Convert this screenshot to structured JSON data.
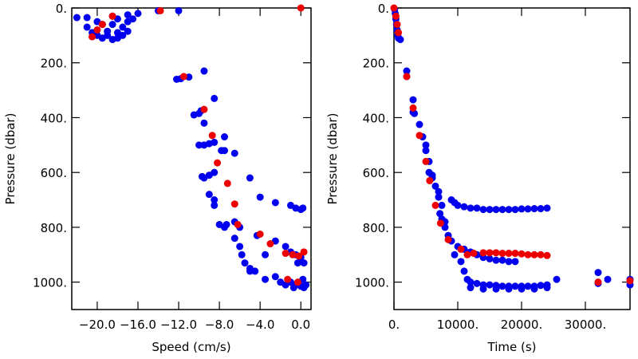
{
  "chart_data": [
    {
      "type": "scatter",
      "xlabel": "Speed (cm/s)",
      "ylabel": "Pressure (dbar)",
      "xlim": [
        -22.5,
        1.0
      ],
      "ylim": [
        0,
        1100
      ],
      "y_inverted": true,
      "xticks": [
        {
          "value": -20,
          "label": "−20.0"
        },
        {
          "value": -16,
          "label": "−16.0"
        },
        {
          "value": -12,
          "label": "−12.0"
        },
        {
          "value": -8,
          "label": "−8.0"
        },
        {
          "value": -4,
          "label": "−4.0"
        },
        {
          "value": 0,
          "label": "0.0"
        }
      ],
      "yticks": [
        {
          "value": 0,
          "label": "0."
        },
        {
          "value": 200,
          "label": "200."
        },
        {
          "value": 400,
          "label": "400."
        },
        {
          "value": 600,
          "label": "600."
        },
        {
          "value": 800,
          "label": "800."
        },
        {
          "value": 1000,
          "label": "1000."
        }
      ],
      "series": [
        {
          "color": "#0000ee",
          "x": [
            -22,
            -21,
            -20,
            -19.5,
            -21,
            -20.5,
            -20,
            -19.5,
            -19,
            -18.5,
            -18,
            -19,
            -18,
            -18.5,
            -17.5,
            -17,
            -17.5,
            -17,
            -16,
            -16.5,
            -17,
            -18,
            -14,
            -12,
            -18.5,
            -12.2,
            -11.8,
            -11,
            -9.5,
            -8.5,
            -10.5,
            -10,
            -9.8,
            -9.5,
            -10,
            -9.5,
            -9,
            -8.5,
            -7.5,
            -9.7,
            -9.5,
            -9,
            -8.5,
            -7.8,
            -7.5,
            -6.5,
            -5,
            -4,
            -2.5,
            -1,
            -0.5,
            0,
            0.2,
            -9,
            -8.5,
            -8.5,
            -8,
            -7.5,
            -7.3,
            -6.5,
            -6,
            -6.5,
            -6,
            -5.8,
            -5.5,
            -5,
            -4.5,
            -3.5,
            -3.5,
            -2.5,
            -2,
            -1.5,
            -1,
            -0.5,
            0,
            0.3,
            0.5,
            -1,
            -0.5,
            0,
            -0.3,
            0.3,
            -2.5,
            -1.5,
            -0.7,
            0.2,
            -4.3,
            -5
          ],
          "values": [
            35,
            35,
            50,
            60,
            70,
            90,
            100,
            110,
            100,
            115,
            110,
            85,
            90,
            60,
            70,
            50,
            100,
            25,
            20,
            40,
            85,
            40,
            10,
            10,
            30,
            260,
            258,
            252,
            230,
            330,
            390,
            385,
            375,
            420,
            500,
            500,
            495,
            490,
            520,
            615,
            620,
            610,
            600,
            520,
            470,
            530,
            620,
            690,
            710,
            720,
            730,
            735,
            730,
            680,
            700,
            720,
            790,
            800,
            790,
            780,
            800,
            840,
            870,
            900,
            930,
            950,
            960,
            900,
            990,
            980,
            1000,
            1010,
            1000,
            1010,
            1015,
            1020,
            1010,
            890,
            900,
            910,
            930,
            930,
            850,
            870,
            1020,
            990,
            830,
            960
          ]
        },
        {
          "color": "#ee0000",
          "x": [
            -20.5,
            -20,
            -19.5,
            -18.5,
            -13.8,
            -11.5,
            -9.5,
            -8.7,
            -8.2,
            -7.2,
            -6.5,
            -6.2,
            -4,
            -3,
            -1.5,
            -0.8,
            -0.2,
            0.3,
            -1.3,
            -0.3,
            0
          ],
          "values": [
            105,
            80,
            60,
            30,
            10,
            250,
            370,
            465,
            565,
            640,
            715,
            790,
            825,
            860,
            895,
            900,
            905,
            890,
            990,
            1000,
            0
          ]
        }
      ]
    },
    {
      "type": "scatter",
      "xlabel": "Time (s)",
      "ylabel": "Pressure (dbar)",
      "xlim": [
        0,
        37000
      ],
      "ylim": [
        0,
        1100
      ],
      "y_inverted": true,
      "xticks": [
        {
          "value": 0,
          "label": "0."
        },
        {
          "value": 10000,
          "label": "10000."
        },
        {
          "value": 20000,
          "label": "20000."
        },
        {
          "value": 30000,
          "label": "30000."
        }
      ],
      "yticks": [
        {
          "value": 0,
          "label": "0."
        },
        {
          "value": 200,
          "label": "200."
        },
        {
          "value": 400,
          "label": "400."
        },
        {
          "value": 600,
          "label": "600."
        },
        {
          "value": 800,
          "label": "800."
        },
        {
          "value": 1000,
          "label": "1000."
        }
      ],
      "series": [
        {
          "color": "#0000ee",
          "x": [
            100,
            200,
            300,
            400,
            500,
            600,
            700,
            1000,
            2000,
            2000,
            3000,
            3000,
            3200,
            4000,
            4500,
            5000,
            5000,
            5500,
            5500,
            6000,
            6000,
            6500,
            7000,
            7000,
            7500,
            7200,
            7500,
            8000,
            8000,
            8500,
            9000,
            9500,
            10000,
            11000,
            12000,
            13000,
            14000,
            15000,
            16000,
            17000,
            18000,
            19000,
            20000,
            21000,
            22000,
            23000,
            24000,
            9000,
            10000,
            11000,
            12000,
            13000,
            14000,
            15000,
            16000,
            17000,
            18000,
            19000,
            9500,
            10500,
            11000,
            11500,
            12000,
            13000,
            14000,
            15000,
            16000,
            17000,
            18000,
            19000,
            20000,
            21000,
            22000,
            23000,
            24000,
            25500,
            32000,
            32000,
            33500,
            37000,
            37000,
            12000,
            14000,
            16000,
            18000,
            20000,
            22000,
            24000
          ],
          "values": [
            5,
            20,
            40,
            60,
            80,
            100,
            110,
            115,
            230,
            250,
            335,
            380,
            385,
            425,
            470,
            500,
            520,
            560,
            600,
            610,
            620,
            650,
            670,
            690,
            720,
            750,
            770,
            780,
            800,
            830,
            700,
            710,
            720,
            725,
            730,
            730,
            735,
            735,
            735,
            735,
            735,
            735,
            733,
            733,
            732,
            732,
            730,
            850,
            870,
            880,
            890,
            900,
            910,
            915,
            920,
            920,
            925,
            925,
            900,
            925,
            960,
            990,
            1000,
            1005,
            1010,
            1010,
            1012,
            1015,
            1015,
            1015,
            1015,
            1015,
            1015,
            1012,
            1010,
            990,
            965,
            1005,
            990,
            990,
            1010,
            1020,
            1025,
            1025,
            1025,
            1025,
            1025,
            1020
          ]
        },
        {
          "color": "#ee0000",
          "x": [
            0,
            300,
            500,
            700,
            2000,
            3000,
            4000,
            5000,
            5600,
            6500,
            7300,
            8500,
            10500,
            11500,
            12500,
            14000,
            15000,
            16000,
            17000,
            18000,
            19000,
            20000,
            21000,
            22000,
            23000,
            24000,
            32000,
            37000
          ],
          "values": [
            0,
            30,
            60,
            90,
            250,
            365,
            465,
            560,
            630,
            720,
            785,
            845,
            880,
            900,
            895,
            893,
            893,
            893,
            895,
            895,
            895,
            897,
            900,
            900,
            900,
            903,
            1000,
            995
          ]
        }
      ]
    }
  ]
}
